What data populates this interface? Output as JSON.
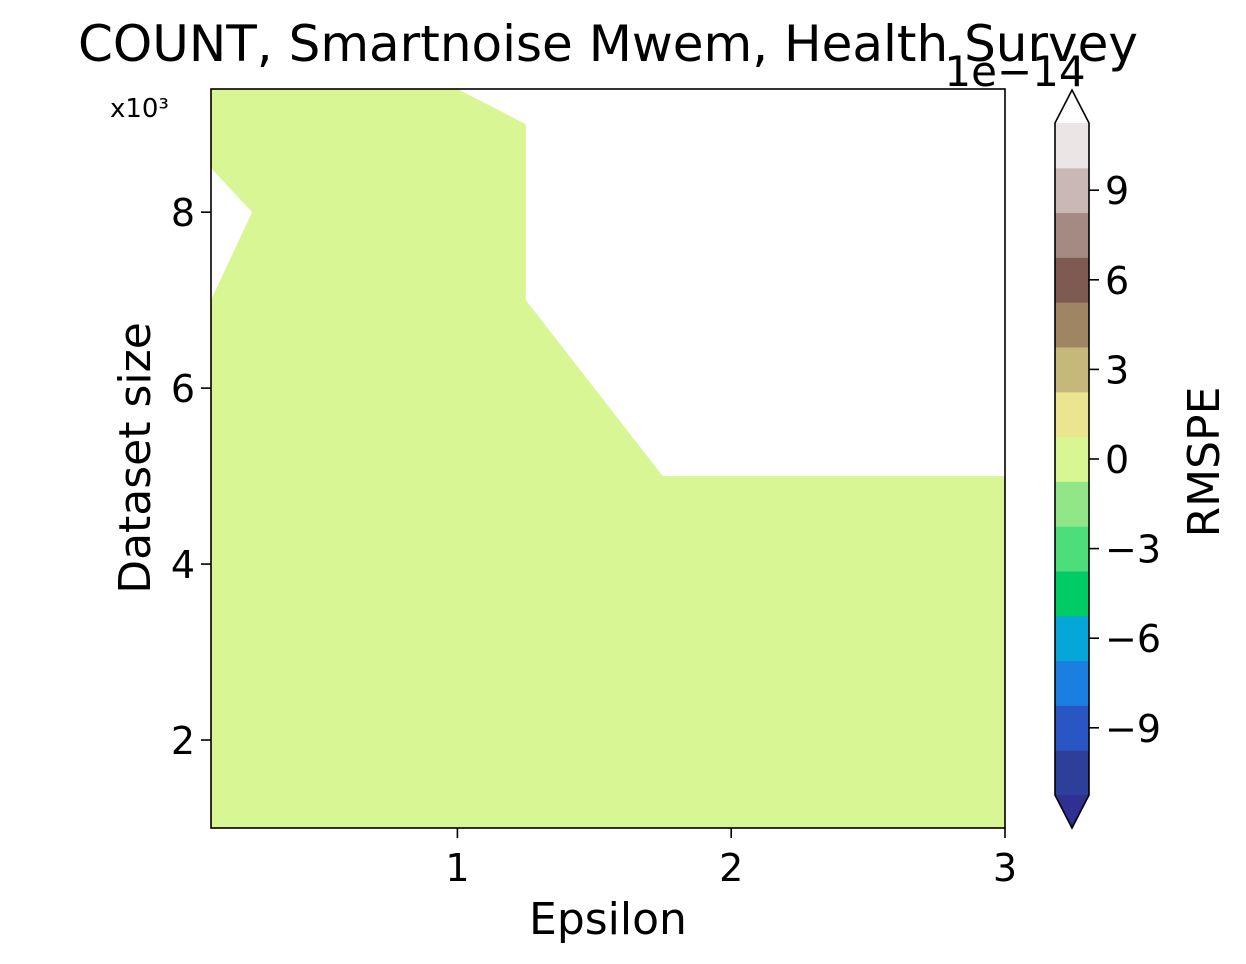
{
  "chart_data": {
    "type": "contour",
    "title": "COUNT, Smartnoise Mwem, Health Survey",
    "xlabel": "Epsilon",
    "ylabel": "Dataset size",
    "y_multiplier_label": "x10³",
    "xlim": [
      0.1,
      3
    ],
    "ylim": [
      1000,
      9400
    ],
    "xticks": [
      {
        "value": 1,
        "label": "1"
      },
      {
        "value": 2,
        "label": "2"
      },
      {
        "value": 3,
        "label": "3"
      }
    ],
    "yticks": [
      {
        "value": 2000,
        "label": "2"
      },
      {
        "value": 4000,
        "label": "4"
      },
      {
        "value": 6000,
        "label": "6"
      },
      {
        "value": 8000,
        "label": "8"
      }
    ],
    "filled_region": {
      "level_color": "#d8f693",
      "polygon": [
        [
          0.1,
          1000
        ],
        [
          3,
          1000
        ],
        [
          3,
          5000
        ],
        [
          1.75,
          5000
        ],
        [
          1.25,
          7000
        ],
        [
          1.25,
          9000
        ],
        [
          1,
          9400
        ],
        [
          0.1,
          9400
        ],
        [
          0.1,
          8500
        ],
        [
          0.25,
          8000
        ],
        [
          0.1,
          7000
        ]
      ]
    },
    "colorbar": {
      "label": "RMSPE",
      "offset_label": "1e−14",
      "range": [
        -11,
        11
      ],
      "level_step": 1.5,
      "colors": [
        "#2e3f9a",
        "#2a55c4",
        "#1a7fe0",
        "#05a6d8",
        "#00cc66",
        "#4ddd7a",
        "#93e687",
        "#d8f693",
        "#ebe490",
        "#c6b87b",
        "#a08563",
        "#7f5a53",
        "#a48a83",
        "#c9b8b4",
        "#ece5e5"
      ],
      "under_color": "#2e3192",
      "over_color": "#ffffff",
      "ticks": [
        {
          "value": -9,
          "label": "−9"
        },
        {
          "value": -6,
          "label": "−6"
        },
        {
          "value": -3,
          "label": "−3"
        },
        {
          "value": 0,
          "label": "0"
        },
        {
          "value": 3,
          "label": "3"
        },
        {
          "value": 6,
          "label": "6"
        },
        {
          "value": 9,
          "label": "9"
        }
      ]
    }
  }
}
